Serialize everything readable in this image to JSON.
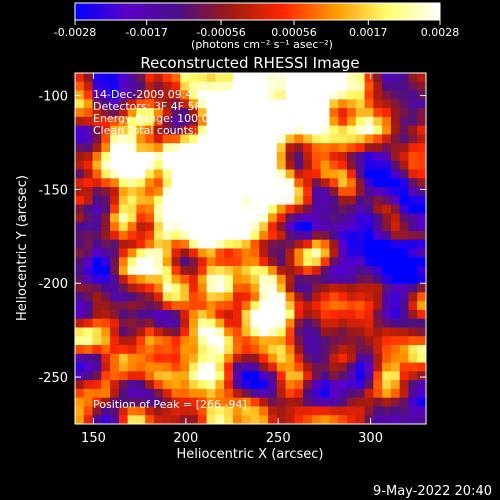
{
  "footer_timestamp": "9-May-2022 20:40",
  "chart_data": {
    "type": "heatmap",
    "title": "Reconstructed RHESSI Image",
    "xlabel": "Heliocentric X (arcsec)",
    "ylabel": "Heliocentric Y (arcsec)",
    "xlim": [
      140,
      330
    ],
    "ylim": [
      -275,
      -88
    ],
    "x_ticks": [
      150,
      200,
      250,
      300
    ],
    "y_ticks": [
      -100,
      -150,
      -200,
      -250
    ],
    "annotations": [
      "14-Dec-2009 09:45:00.000 to 09:50:00.000",
      "Detectors: 3F 4F 5F 6F 7F 8F, Att 3",
      "Energy Range: 100.0 - 300.0 keV",
      "Clean    Total counts: 2.58E+05"
    ],
    "peak_label": "Position of Peak = [266,-94]",
    "peak_position": [
      266,
      -94
    ],
    "colorbar": {
      "range": [
        -0.0028,
        0.0028
      ],
      "tick_values": [
        -0.0028,
        -0.0017,
        -0.00056,
        0.00056,
        0.0017,
        0.0028
      ],
      "tick_labels": [
        "-0.0028",
        "-0.0017",
        "-0.00056",
        "0.00056",
        "0.0017",
        "0.0028"
      ],
      "unit_label": "(photons cm⁻² s⁻¹ asec⁻²)",
      "colors": [
        "#0000ff",
        "#5a00c8",
        "#4b0f87",
        "#a01a10",
        "#ff2600",
        "#ff9a00",
        "#ffff6e",
        "#ffffff"
      ]
    },
    "grid": false,
    "legend": "none"
  }
}
